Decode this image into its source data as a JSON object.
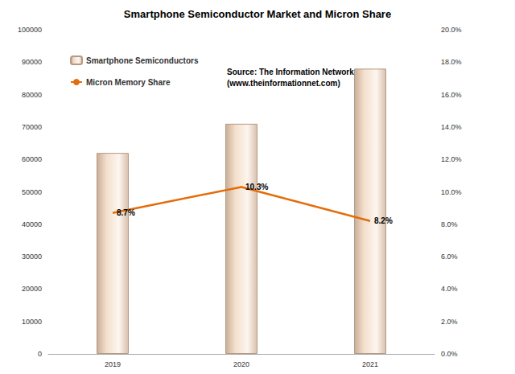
{
  "chart_data": {
    "type": "bar",
    "title": "Smartphone Semiconductor Market and Micron Share",
    "categories": [
      "2019",
      "2020",
      "2021"
    ],
    "series": [
      {
        "name": "Smartphone Semiconductors",
        "type": "bar",
        "color": "#f3dfcc",
        "values": [
          62000,
          71000,
          88000
        ]
      },
      {
        "name": "Micron Memory Share",
        "type": "line",
        "color": "#e46c0a",
        "axis": "y2",
        "values": [
          8.7,
          10.3,
          8.2
        ],
        "value_labels": [
          "8.7%",
          "10.3%",
          "8.2%"
        ],
        "data_labels": true
      }
    ],
    "ylim": [
      0,
      100000
    ],
    "yticks": [
      0,
      10000,
      20000,
      30000,
      40000,
      50000,
      60000,
      70000,
      80000,
      90000,
      100000
    ],
    "y2lim": [
      0,
      20
    ],
    "y2ticks": [
      {
        "value": 0,
        "label": "0.0%"
      },
      {
        "value": 2,
        "label": "2.0%"
      },
      {
        "value": 4,
        "label": "4.0%"
      },
      {
        "value": 6,
        "label": "6.0%"
      },
      {
        "value": 8,
        "label": "8.0%"
      },
      {
        "value": 10,
        "label": "10.0%"
      },
      {
        "value": 12,
        "label": "12.0%"
      },
      {
        "value": 14,
        "label": "14.0%"
      },
      {
        "value": 16,
        "label": "16.0%"
      },
      {
        "value": 18,
        "label": "18.0%"
      },
      {
        "value": 20,
        "label": "20.0%"
      }
    ],
    "grid": false,
    "legend": "upper left",
    "annotations": [
      "Source: The Information Network",
      "(www.theinformationnet.com)"
    ]
  }
}
